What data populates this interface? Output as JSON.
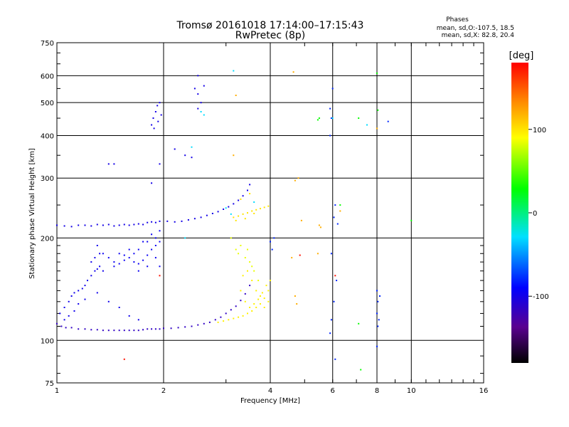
{
  "chart_data": {
    "type": "scatter",
    "title": "Tromsø 20161018 17:14:00–17:15:43",
    "subtitle": "RwPretec (8p)",
    "stats": {
      "heading": "Phases",
      "line1": "mean, sd,O:-107.5, 18.5",
      "line2": "mean, sd,X:  82.8, 20.4"
    },
    "xlabel": "Frequency [MHz]",
    "ylabel": "Stationary phase Virtual Height [km]",
    "x_scale": "log2",
    "y_scale": "log",
    "xlim": [
      1,
      16
    ],
    "ylim": [
      75,
      750
    ],
    "x_ticks": [
      1,
      2,
      4,
      6,
      8,
      10,
      16
    ],
    "x_tick_labels": [
      "1",
      "2",
      "4",
      "6",
      "8",
      "10",
      "16"
    ],
    "y_ticks": [
      75,
      100,
      200,
      300,
      400,
      500,
      600,
      750
    ],
    "y_tick_labels": [
      "75",
      "100",
      "200",
      "300",
      "400",
      "500",
      "600",
      "750"
    ],
    "grid": true,
    "colorbar": {
      "label": "[deg]",
      "range": [
        -180,
        180
      ],
      "ticks": [
        100,
        0,
        -100
      ],
      "tick_labels": [
        "100",
        "0",
        "-100"
      ]
    },
    "series": [
      {
        "key": "o_low_trace",
        "phase": -115,
        "points": [
          [
            1.0,
            112
          ],
          [
            1.03,
            110
          ],
          [
            1.06,
            109
          ],
          [
            1.1,
            109
          ],
          [
            1.15,
            108
          ],
          [
            1.2,
            108
          ],
          [
            1.25,
            107.5
          ],
          [
            1.3,
            107.5
          ],
          [
            1.35,
            107
          ],
          [
            1.4,
            107
          ],
          [
            1.45,
            107
          ],
          [
            1.5,
            107
          ],
          [
            1.55,
            107
          ],
          [
            1.6,
            107
          ],
          [
            1.65,
            107
          ],
          [
            1.7,
            107
          ],
          [
            1.75,
            107.5
          ],
          [
            1.8,
            108
          ],
          [
            1.85,
            108
          ],
          [
            1.9,
            108
          ],
          [
            1.95,
            108
          ],
          [
            2.0,
            108.5
          ],
          [
            2.1,
            108.5
          ],
          [
            2.2,
            109
          ],
          [
            2.3,
            109.5
          ],
          [
            2.4,
            110
          ],
          [
            2.5,
            111
          ],
          [
            2.6,
            112
          ],
          [
            2.7,
            113
          ],
          [
            2.8,
            115
          ],
          [
            2.9,
            117
          ],
          [
            3.0,
            120
          ],
          [
            3.1,
            123
          ],
          [
            3.2,
            126
          ],
          [
            3.3,
            131
          ],
          [
            3.4,
            137
          ],
          [
            3.5,
            145
          ]
        ]
      },
      {
        "key": "o_f2_trace",
        "phase": -100,
        "points": [
          [
            1.0,
            218
          ],
          [
            1.05,
            217
          ],
          [
            1.1,
            216
          ],
          [
            1.15,
            218
          ],
          [
            1.2,
            218
          ],
          [
            1.25,
            217
          ],
          [
            1.3,
            219
          ],
          [
            1.35,
            218
          ],
          [
            1.4,
            219
          ],
          [
            1.45,
            217
          ],
          [
            1.5,
            218
          ],
          [
            1.55,
            219
          ],
          [
            1.6,
            218
          ],
          [
            1.65,
            219
          ],
          [
            1.7,
            220
          ],
          [
            1.75,
            219
          ],
          [
            1.8,
            222
          ],
          [
            1.85,
            223
          ],
          [
            1.9,
            222
          ],
          [
            1.95,
            224
          ],
          [
            2.05,
            224
          ],
          [
            2.15,
            223
          ],
          [
            2.25,
            224
          ],
          [
            2.35,
            226
          ],
          [
            2.45,
            228
          ],
          [
            2.55,
            230
          ],
          [
            2.65,
            233
          ],
          [
            2.75,
            236
          ],
          [
            2.85,
            239
          ],
          [
            2.95,
            243
          ],
          [
            3.05,
            247
          ],
          [
            3.15,
            252
          ],
          [
            3.25,
            258
          ],
          [
            3.35,
            266
          ],
          [
            3.45,
            276
          ],
          [
            3.5,
            287
          ]
        ]
      },
      {
        "key": "o_cloud_mid",
        "phase": -95,
        "points": [
          [
            1.35,
            180
          ],
          [
            1.4,
            175
          ],
          [
            1.45,
            170
          ],
          [
            1.5,
            168
          ],
          [
            1.55,
            172
          ],
          [
            1.6,
            175
          ],
          [
            1.65,
            170
          ],
          [
            1.7,
            168
          ],
          [
            1.75,
            172
          ],
          [
            1.8,
            178
          ],
          [
            1.85,
            185
          ],
          [
            1.9,
            190
          ],
          [
            1.95,
            195
          ],
          [
            1.5,
            180
          ],
          [
            1.6,
            185
          ],
          [
            1.7,
            185
          ],
          [
            1.8,
            195
          ],
          [
            1.9,
            200
          ],
          [
            1.95,
            210
          ],
          [
            1.85,
            205
          ],
          [
            1.75,
            195
          ],
          [
            1.65,
            180
          ],
          [
            1.55,
            178
          ],
          [
            1.45,
            165
          ],
          [
            1.7,
            160
          ],
          [
            1.8,
            165
          ],
          [
            1.9,
            175
          ],
          [
            1.95,
            165
          ]
        ]
      },
      {
        "key": "o_low_scatter",
        "phase": -98,
        "points": [
          [
            1.02,
            120
          ],
          [
            1.05,
            125
          ],
          [
            1.08,
            130
          ],
          [
            1.1,
            135
          ],
          [
            1.12,
            138
          ],
          [
            1.15,
            140
          ],
          [
            1.18,
            142
          ],
          [
            1.2,
            145
          ],
          [
            1.22,
            150
          ],
          [
            1.25,
            155
          ],
          [
            1.28,
            160
          ],
          [
            1.3,
            162
          ],
          [
            1.32,
            165
          ],
          [
            1.35,
            160
          ],
          [
            1.08,
            118
          ],
          [
            1.12,
            122
          ],
          [
            1.15,
            128
          ],
          [
            1.2,
            132
          ],
          [
            1.3,
            138
          ],
          [
            1.4,
            130
          ],
          [
            1.5,
            125
          ],
          [
            1.6,
            118
          ],
          [
            1.7,
            115
          ],
          [
            1.05,
            115
          ],
          [
            1.25,
            170
          ],
          [
            1.28,
            175
          ],
          [
            1.32,
            180
          ],
          [
            1.3,
            190
          ]
        ]
      },
      {
        "key": "o_upper_cluster",
        "phase": -100,
        "points": [
          [
            1.85,
            430
          ],
          [
            1.87,
            450
          ],
          [
            1.9,
            470
          ],
          [
            1.92,
            490
          ],
          [
            1.95,
            500
          ],
          [
            1.88,
            420
          ],
          [
            1.93,
            440
          ],
          [
            1.97,
            460
          ],
          [
            2.5,
            480
          ],
          [
            2.55,
            500
          ],
          [
            2.5,
            530
          ],
          [
            2.45,
            550
          ],
          [
            2.6,
            560
          ],
          [
            2.5,
            600
          ],
          [
            1.4,
            330
          ],
          [
            1.45,
            330
          ],
          [
            2.3,
            350
          ],
          [
            2.4,
            345
          ],
          [
            2.15,
            365
          ],
          [
            1.95,
            330
          ],
          [
            1.85,
            290
          ]
        ]
      },
      {
        "key": "x_trace",
        "phase": 95,
        "points": [
          [
            2.85,
            113
          ],
          [
            2.95,
            114
          ],
          [
            3.05,
            115
          ],
          [
            3.15,
            116
          ],
          [
            3.25,
            117
          ],
          [
            3.35,
            118
          ],
          [
            3.45,
            120
          ],
          [
            3.55,
            122
          ],
          [
            3.65,
            125
          ],
          [
            3.75,
            128
          ],
          [
            3.85,
            133
          ],
          [
            3.95,
            140
          ],
          [
            4.0,
            150
          ],
          [
            3.9,
            145
          ],
          [
            3.8,
            138
          ],
          [
            3.7,
            132
          ],
          [
            3.6,
            128
          ],
          [
            3.5,
            125
          ],
          [
            3.4,
            130
          ],
          [
            3.3,
            140
          ],
          [
            3.35,
            155
          ],
          [
            3.45,
            160
          ],
          [
            3.55,
            150
          ],
          [
            3.65,
            140
          ],
          [
            3.75,
            135
          ],
          [
            3.85,
            125
          ],
          [
            3.95,
            130
          ]
        ]
      },
      {
        "key": "x_f2_trace",
        "phase": 100,
        "points": [
          [
            3.15,
            230
          ],
          [
            3.25,
            232
          ],
          [
            3.35,
            235
          ],
          [
            3.45,
            237
          ],
          [
            3.55,
            240
          ],
          [
            3.65,
            242
          ],
          [
            3.75,
            244
          ],
          [
            3.85,
            246
          ],
          [
            3.95,
            248
          ],
          [
            3.2,
            225
          ],
          [
            3.4,
            228
          ],
          [
            3.6,
            236
          ],
          [
            3.3,
            260
          ],
          [
            3.5,
            270
          ]
        ]
      },
      {
        "key": "x_mid_scatter",
        "phase": 85,
        "points": [
          [
            3.2,
            185
          ],
          [
            3.3,
            190
          ],
          [
            3.25,
            180
          ],
          [
            3.4,
            175
          ],
          [
            3.5,
            170
          ],
          [
            3.45,
            185
          ],
          [
            3.6,
            160
          ],
          [
            3.7,
            150
          ],
          [
            3.55,
            165
          ],
          [
            3.1,
            200
          ]
        ]
      },
      {
        "key": "sparse_high",
        "phase": -80,
        "points": [
          [
            5.9,
            400
          ],
          [
            5.95,
            450
          ],
          [
            5.9,
            480
          ],
          [
            6.0,
            550
          ],
          [
            6.05,
            230
          ],
          [
            6.1,
            250
          ],
          [
            6.2,
            220
          ],
          [
            5.95,
            180
          ],
          [
            6.15,
            150
          ],
          [
            6.05,
            130
          ],
          [
            5.95,
            115
          ],
          [
            5.9,
            105
          ],
          [
            6.1,
            88
          ],
          [
            8.0,
            140
          ],
          [
            8.05,
            130
          ],
          [
            8.0,
            120
          ],
          [
            8.1,
            115
          ],
          [
            8.05,
            110
          ],
          [
            8.0,
            96
          ],
          [
            8.15,
            135
          ],
          [
            8.6,
            440
          ],
          [
            4.0,
            195
          ],
          [
            4.1,
            200
          ],
          [
            4.05,
            185
          ]
        ]
      },
      {
        "key": "sparse_green",
        "phase": 30,
        "points": [
          [
            5.5,
            450
          ],
          [
            5.45,
            445
          ],
          [
            7.1,
            450
          ],
          [
            8.05,
            475
          ],
          [
            8.0,
            610
          ],
          [
            6.3,
            250
          ],
          [
            10.0,
            225
          ],
          [
            7.2,
            82
          ],
          [
            7.1,
            112
          ]
        ]
      },
      {
        "key": "sparse_orange",
        "phase": 120,
        "points": [
          [
            4.65,
            615
          ],
          [
            3.2,
            525
          ],
          [
            3.15,
            350
          ],
          [
            4.8,
            300
          ],
          [
            4.7,
            295
          ],
          [
            5.5,
            218
          ],
          [
            5.55,
            215
          ],
          [
            5.45,
            180
          ],
          [
            4.6,
            175
          ],
          [
            4.9,
            225
          ],
          [
            6.3,
            240
          ],
          [
            4.7,
            135
          ],
          [
            4.75,
            128
          ],
          [
            8.0,
            420
          ]
        ]
      },
      {
        "key": "sparse_red",
        "phase": 175,
        "points": [
          [
            1.55,
            88
          ],
          [
            4.85,
            178
          ],
          [
            6.1,
            155
          ],
          [
            1.95,
            155
          ]
        ]
      },
      {
        "key": "sparse_cyan",
        "phase": -30,
        "points": [
          [
            3.15,
            620
          ],
          [
            2.6,
            460
          ],
          [
            2.55,
            470
          ],
          [
            7.5,
            430
          ],
          [
            6.0,
            450
          ],
          [
            2.3,
            200
          ],
          [
            3.0,
            245
          ],
          [
            3.1,
            235
          ],
          [
            3.6,
            255
          ],
          [
            2.4,
            370
          ]
        ]
      }
    ]
  }
}
